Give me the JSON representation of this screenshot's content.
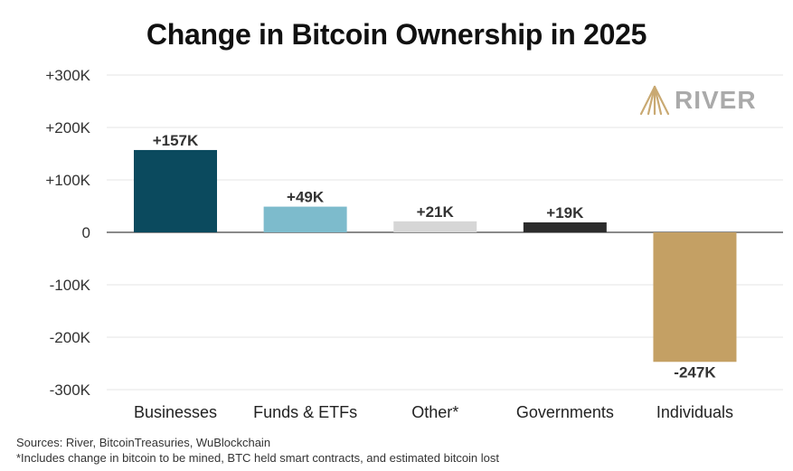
{
  "logo": {
    "text": "RIVER",
    "icon": "river-logo-icon",
    "color": "#C9A972"
  },
  "sources": "Sources: River, BitcoinTreasuries, WuBlockchain",
  "footnote": "*Includes change in bitcoin to be mined, BTC held smart contracts, and estimated bitcoin lost",
  "chart_data": {
    "type": "bar",
    "title": "Change in Bitcoin Ownership in 2025",
    "categories": [
      "Businesses",
      "Funds & ETFs",
      "Other*",
      "Governments",
      "Individuals"
    ],
    "values": [
      157000,
      49000,
      21000,
      19000,
      -247000
    ],
    "data_labels": [
      "+157K",
      "+49K",
      "+21K",
      "+19K",
      "-247K"
    ],
    "colors": [
      "#0B4A5E",
      "#7DBBCC",
      "#D6D6D6",
      "#2B2B2B",
      "#C4A064"
    ],
    "ylim": [
      -300000,
      300000
    ],
    "yticks": [
      300000,
      200000,
      100000,
      0,
      -100000,
      -200000,
      -300000
    ],
    "ytick_labels": [
      "+300K",
      "+200K",
      "+100K",
      "0",
      "-100K",
      "-200K",
      "-300K"
    ],
    "grid": true,
    "xlabel": "",
    "ylabel": ""
  }
}
